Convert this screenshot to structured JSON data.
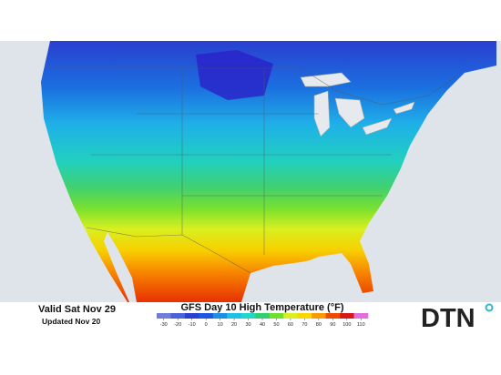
{
  "header": {
    "valid": "Valid Sat Nov 29",
    "updated": "Updated Nov 20"
  },
  "legend": {
    "title": "GFS Day 10 High Temperature (°F)",
    "ticks": [
      -30,
      -20,
      -10,
      0,
      10,
      20,
      30,
      40,
      50,
      60,
      70,
      80,
      90,
      100,
      110
    ],
    "colors": [
      "#6f7fd8",
      "#4a62d8",
      "#2a3fd0",
      "#1f55e0",
      "#1b8fe8",
      "#1fc0e8",
      "#20d8c8",
      "#30d070",
      "#6ee030",
      "#d8f020",
      "#f8d800",
      "#f89a00",
      "#f04a00",
      "#d81818",
      "#e070e0"
    ]
  },
  "brand": {
    "logo": "DTN"
  }
}
